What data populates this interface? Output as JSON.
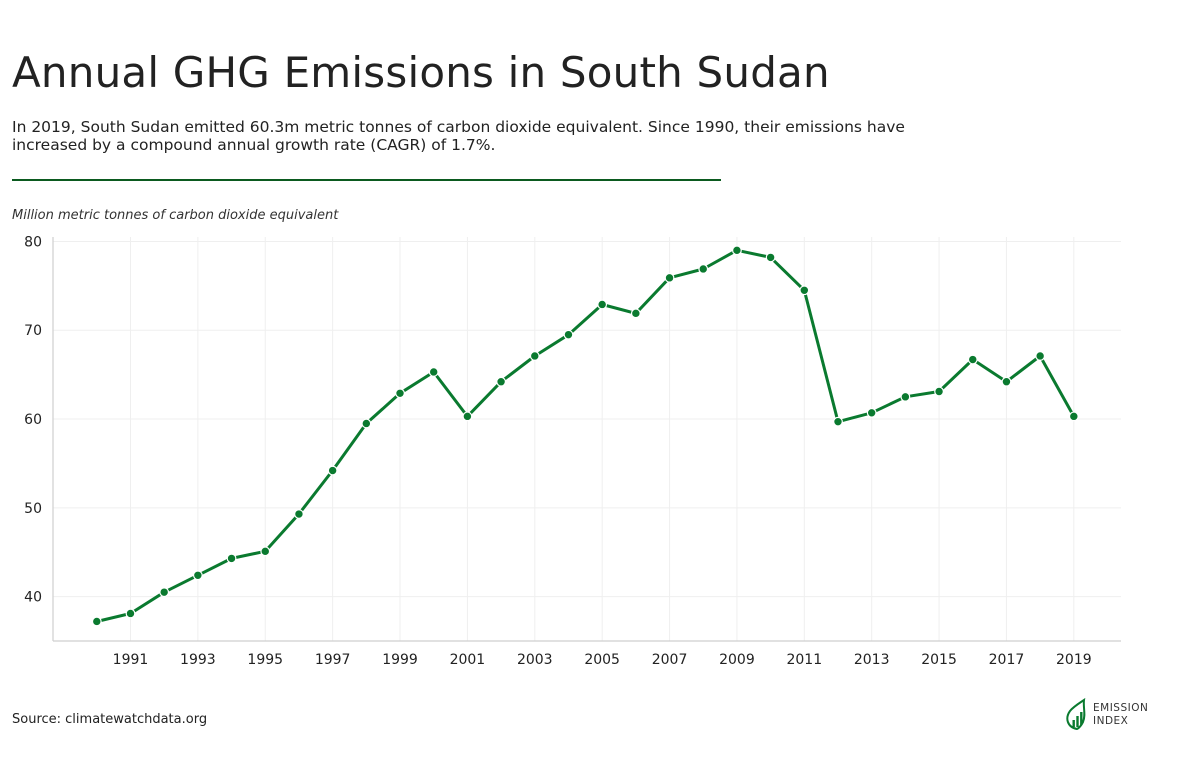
{
  "header": {
    "title": "Annual GHG Emissions in South Sudan",
    "subtitle": "In 2019, South Sudan emitted 60.3m metric tonnes of carbon dioxide equivalent. Since 1990, their emissions have increased by a compound annual growth rate (CAGR) of 1.7%."
  },
  "chart_data": {
    "type": "line",
    "title": "Annual GHG Emissions in South Sudan",
    "ylabel": "Million metric tonnes of carbon dioxide equivalent",
    "xlabel": "",
    "ylim": [
      35,
      80.5
    ],
    "xlim": [
      1988.7,
      2020.4
    ],
    "y_ticks": [
      40,
      50,
      60,
      70,
      80
    ],
    "x_ticks": [
      1991,
      1993,
      1995,
      1997,
      1999,
      2001,
      2003,
      2005,
      2007,
      2009,
      2011,
      2013,
      2015,
      2017,
      2019
    ],
    "grid": true,
    "legend": "none",
    "series": [
      {
        "color": "#0a7a2f",
        "x": [
          1990,
          1991,
          1992,
          1993,
          1994,
          1995,
          1996,
          1997,
          1998,
          1999,
          2000,
          2001,
          2002,
          2003,
          2004,
          2005,
          2006,
          2007,
          2008,
          2009,
          2010,
          2011,
          2012,
          2013,
          2014,
          2015,
          2016,
          2017,
          2018,
          2019
        ],
        "values": [
          37.2,
          38.1,
          40.5,
          42.4,
          44.3,
          45.1,
          49.3,
          54.2,
          59.5,
          62.9,
          65.3,
          60.3,
          64.2,
          67.1,
          69.5,
          72.9,
          71.9,
          75.9,
          76.9,
          79.0,
          78.2,
          74.5,
          59.7,
          60.7,
          62.5,
          63.1,
          66.7,
          64.2,
          67.1,
          60.3
        ]
      }
    ]
  },
  "footer": {
    "source": "Source: climatewatchdata.org",
    "brand_line1": "EMISSION",
    "brand_line2": "INDEX"
  }
}
